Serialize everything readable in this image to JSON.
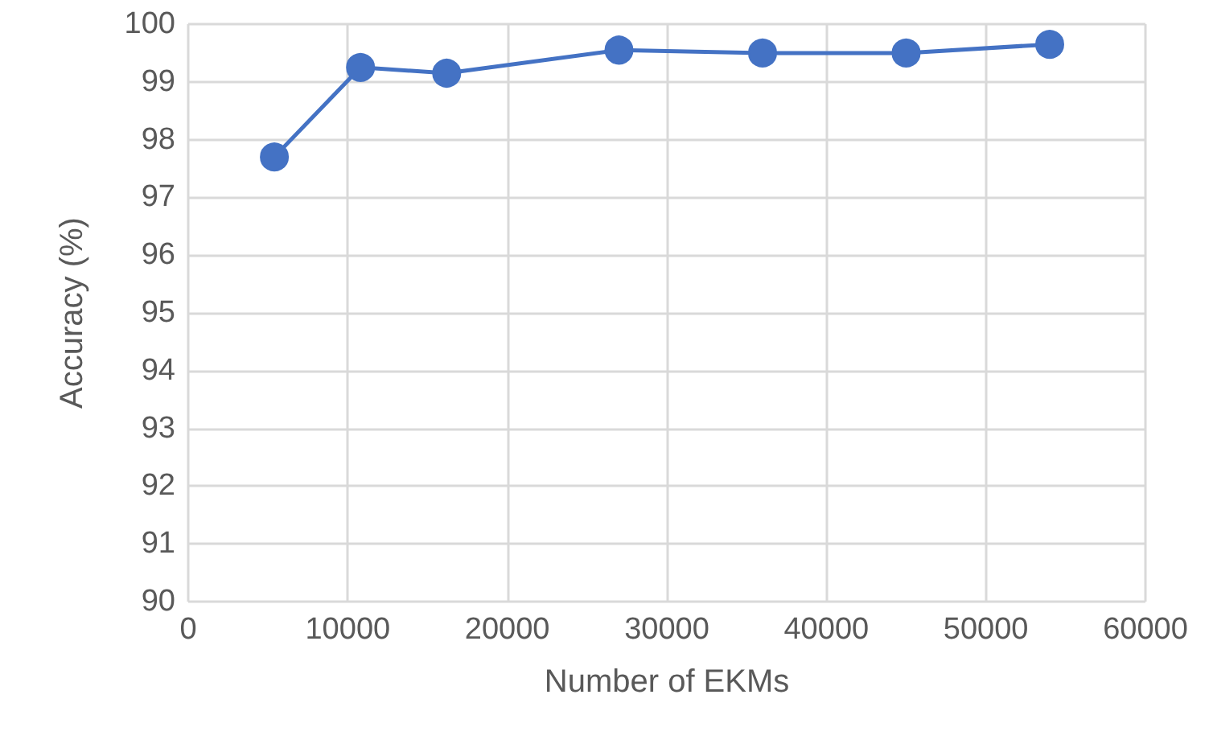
{
  "chart_data": {
    "type": "line",
    "xlabel": "Number of EKMs",
    "ylabel": "Accuracy (%)",
    "x": [
      5400,
      10800,
      16200,
      27000,
      36000,
      45000,
      54000
    ],
    "series": [
      {
        "color": "#4472c4",
        "values": [
          97.7,
          99.25,
          99.15,
          99.55,
          99.5,
          99.5,
          99.65
        ]
      }
    ],
    "xlim": [
      0,
      60000
    ],
    "xticks": [
      0,
      10000,
      20000,
      30000,
      40000,
      50000,
      60000
    ],
    "ylim": [
      90,
      100
    ],
    "yticks": [
      90,
      91,
      92,
      93,
      94,
      95,
      96,
      97,
      98,
      99,
      100
    ],
    "grid": true,
    "marker": "circle",
    "line_style": "solid"
  }
}
